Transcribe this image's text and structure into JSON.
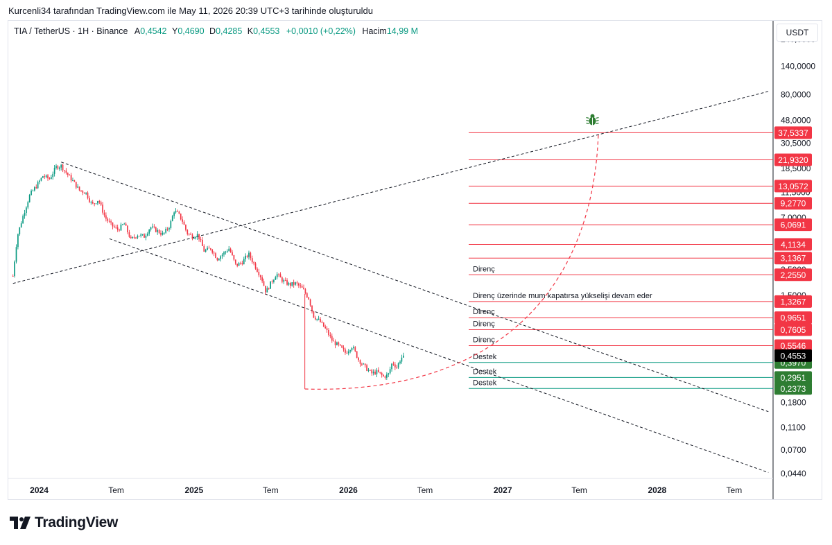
{
  "header": {
    "author_line": "Kurcenli34 tarafından TradingView.com ile May 11, 2026 20:39 UTC+3 tarihinde oluşturuldu"
  },
  "legend": {
    "symbol": "TIA / TetherUS · 1H · Binance",
    "open_label": "A",
    "open_value": "0,4542",
    "high_label": "Y",
    "high_value": "0,4690",
    "low_label": "D",
    "low_value": "0,4285",
    "close_label": "K",
    "close_value": "0,4553",
    "change": "+0,0010 (+0,22%)",
    "volume_label": "Hacim",
    "volume_value": "14,99 M"
  },
  "unit_label": "USDT",
  "logo": {
    "text": "TradingView"
  },
  "colors": {
    "up": "#089981",
    "down": "#f23645",
    "resistance": "#f23645",
    "support": "#089981",
    "current": "#000000"
  },
  "chart_data": {
    "type": "candlestick",
    "y_scale": "log",
    "ylim": [
      0.04,
      300
    ],
    "xlim": [
      "2023-10-20",
      "2028-10-01"
    ],
    "x_ticks": [
      {
        "label": "2024",
        "date": "2024-01-01",
        "bold": true
      },
      {
        "label": "Tem",
        "date": "2024-07-01",
        "bold": false
      },
      {
        "label": "2025",
        "date": "2025-01-01",
        "bold": true
      },
      {
        "label": "Tem",
        "date": "2025-07-01",
        "bold": false
      },
      {
        "label": "2026",
        "date": "2026-01-01",
        "bold": true
      },
      {
        "label": "Tem",
        "date": "2026-07-01",
        "bold": false
      },
      {
        "label": "2027",
        "date": "2027-01-01",
        "bold": true
      },
      {
        "label": "Tem",
        "date": "2027-07-01",
        "bold": false
      },
      {
        "label": "2028",
        "date": "2028-01-01",
        "bold": true
      },
      {
        "label": "Tem",
        "date": "2028-07-01",
        "bold": false
      }
    ],
    "y_ticks": [
      {
        "label": "240,0000",
        "value": 240
      },
      {
        "label": "140,0000",
        "value": 140
      },
      {
        "label": "80,0000",
        "value": 80
      },
      {
        "label": "48,0000",
        "value": 48
      },
      {
        "label": "30,5000",
        "value": 30.5
      },
      {
        "label": "18,5000",
        "value": 18.5
      },
      {
        "label": "11,5000",
        "value": 11.5
      },
      {
        "label": "7,0000",
        "value": 7
      },
      {
        "label": "4,2000",
        "value": 4.2
      },
      {
        "label": "2,5000",
        "value": 2.5
      },
      {
        "label": "1,5000",
        "value": 1.5
      },
      {
        "label": "0,9000",
        "value": 0.9
      },
      {
        "label": "0,5300",
        "value": 0.53
      },
      {
        "label": "0,3100",
        "value": 0.31
      },
      {
        "label": "0,1800",
        "value": 0.18
      },
      {
        "label": "0,1100",
        "value": 0.11
      },
      {
        "label": "0,0700",
        "value": 0.07
      },
      {
        "label": "0,0440",
        "value": 0.044
      }
    ],
    "price_path": [
      [
        "2023-10-31",
        2.2
      ],
      [
        "2023-11-10",
        4.8
      ],
      [
        "2023-11-25",
        7.5
      ],
      [
        "2023-12-10",
        11.0
      ],
      [
        "2023-12-25",
        13.0
      ],
      [
        "2024-01-10",
        16.0
      ],
      [
        "2024-01-25",
        15.0
      ],
      [
        "2024-02-10",
        19.0
      ],
      [
        "2024-02-22",
        19.5
      ],
      [
        "2024-03-05",
        17.0
      ],
      [
        "2024-03-20",
        14.5
      ],
      [
        "2024-04-05",
        12.0
      ],
      [
        "2024-04-20",
        11.5
      ],
      [
        "2024-05-05",
        9.0
      ],
      [
        "2024-05-20",
        10.0
      ],
      [
        "2024-06-05",
        7.0
      ],
      [
        "2024-06-20",
        6.0
      ],
      [
        "2024-07-05",
        5.5
      ],
      [
        "2024-07-20",
        6.2
      ],
      [
        "2024-08-05",
        4.5
      ],
      [
        "2024-08-20",
        5.0
      ],
      [
        "2024-09-05",
        4.8
      ],
      [
        "2024-09-20",
        5.8
      ],
      [
        "2024-10-05",
        5.4
      ],
      [
        "2024-10-20",
        5.0
      ],
      [
        "2024-11-05",
        6.0
      ],
      [
        "2024-11-15",
        8.0
      ],
      [
        "2024-11-25",
        7.5
      ],
      [
        "2024-12-05",
        6.5
      ],
      [
        "2024-12-15",
        5.2
      ],
      [
        "2024-12-28",
        4.8
      ],
      [
        "2025-01-10",
        5.0
      ],
      [
        "2025-01-25",
        3.6
      ],
      [
        "2025-02-10",
        3.8
      ],
      [
        "2025-02-25",
        3.1
      ],
      [
        "2025-03-10",
        3.4
      ],
      [
        "2025-03-25",
        3.8
      ],
      [
        "2025-04-10",
        2.7
      ],
      [
        "2025-04-25",
        2.9
      ],
      [
        "2025-05-10",
        3.4
      ],
      [
        "2025-05-25",
        2.7
      ],
      [
        "2025-06-10",
        2.1
      ],
      [
        "2025-06-20",
        1.6
      ],
      [
        "2025-07-01",
        1.9
      ],
      [
        "2025-07-15",
        2.3
      ],
      [
        "2025-07-30",
        2.0
      ],
      [
        "2025-08-15",
        1.85
      ],
      [
        "2025-08-30",
        1.9
      ],
      [
        "2025-09-15",
        1.7
      ],
      [
        "2025-09-30",
        1.4
      ],
      [
        "2025-10-10",
        1.0
      ],
      [
        "2025-10-25",
        0.9
      ],
      [
        "2025-11-10",
        0.75
      ],
      [
        "2025-11-25",
        0.6
      ],
      [
        "2025-12-10",
        0.55
      ],
      [
        "2025-12-25",
        0.48
      ],
      [
        "2026-01-10",
        0.55
      ],
      [
        "2026-01-25",
        0.42
      ],
      [
        "2026-02-10",
        0.36
      ],
      [
        "2026-02-25",
        0.32
      ],
      [
        "2026-03-10",
        0.33
      ],
      [
        "2026-03-25",
        0.3
      ],
      [
        "2026-04-05",
        0.31
      ],
      [
        "2026-04-15",
        0.4
      ],
      [
        "2026-04-25",
        0.36
      ],
      [
        "2026-05-05",
        0.43
      ],
      [
        "2026-05-11",
        0.4553
      ]
    ],
    "levels": [
      {
        "value": 37.5337,
        "label": "37,5337",
        "kind": "resistance",
        "note": ""
      },
      {
        "value": 21.932,
        "label": "21,9320",
        "kind": "resistance",
        "note": ""
      },
      {
        "value": 13.0572,
        "label": "13,0572",
        "kind": "resistance",
        "note": ""
      },
      {
        "value": 9.277,
        "label": "9,2770",
        "kind": "resistance",
        "note": ""
      },
      {
        "value": 6.0691,
        "label": "6,0691",
        "kind": "resistance",
        "note": ""
      },
      {
        "value": 4.1134,
        "label": "4,1134",
        "kind": "resistance",
        "note": ""
      },
      {
        "value": 3.1367,
        "label": "3,1367",
        "kind": "resistance",
        "note": ""
      },
      {
        "value": 2.255,
        "label": "2,2550",
        "kind": "resistance",
        "note": "Direnç"
      },
      {
        "value": 1.3267,
        "label": "1,3267",
        "kind": "resistance",
        "note": "Direnç üzerinde mum kapatırsa yükselişi devam eder"
      },
      {
        "value": 0.9651,
        "label": "0,9651",
        "kind": "resistance",
        "note": "Direnç"
      },
      {
        "value": 0.7605,
        "label": "0,7605",
        "kind": "resistance",
        "note": "Direnç"
      },
      {
        "value": 0.5546,
        "label": "0,5546",
        "kind": "resistance",
        "note": "Direnç"
      },
      {
        "value": 0.397,
        "label": "0,3970",
        "kind": "support",
        "note": "Destek"
      },
      {
        "value": 0.2951,
        "label": "0,2951",
        "kind": "support",
        "note": "Destek"
      },
      {
        "value": 0.2373,
        "label": "0,2373",
        "kind": "support",
        "note": "Destek"
      }
    ],
    "current_price": {
      "value": 0.4553,
      "label": "0,4553"
    },
    "trendlines": [
      {
        "style": "dashed",
        "from": [
          "2023-10-31",
          1.9
        ],
        "to": [
          "2028-09-20",
          85
        ]
      },
      {
        "style": "dashed",
        "from": [
          "2024-02-22",
          21
        ],
        "to": [
          "2028-09-20",
          0.15
        ]
      },
      {
        "style": "dashed",
        "from": [
          "2024-06-15",
          4.6
        ],
        "to": [
          "2028-09-20",
          0.045
        ]
      }
    ],
    "projection_curve": {
      "style": "dashed",
      "color": "#f23645",
      "start": [
        "2025-09-20",
        0.235
      ],
      "end": [
        "2027-08-15",
        37.5
      ]
    },
    "vertical_marker": {
      "date": "2025-09-20",
      "from": 1.55,
      "to": 0.235
    },
    "target_icon": {
      "name": "bug-icon",
      "date": "2027-08-01",
      "value": 48
    }
  }
}
